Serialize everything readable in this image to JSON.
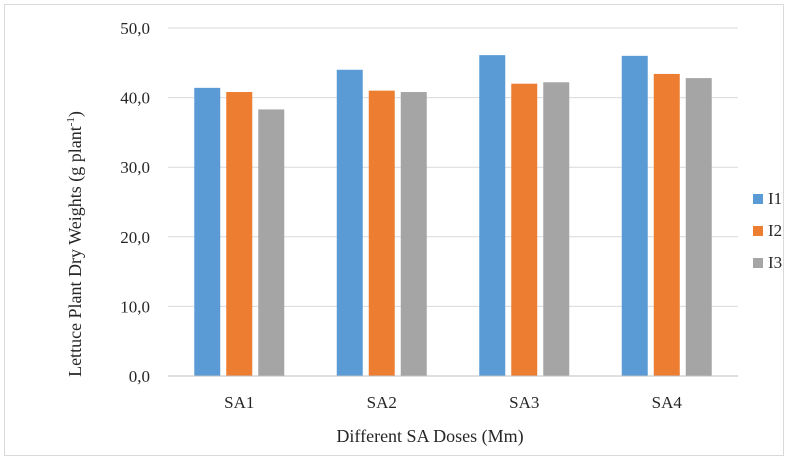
{
  "chart_data": {
    "type": "bar",
    "categories": [
      "SA1",
      "SA2",
      "SA3",
      "SA4"
    ],
    "series": [
      {
        "name": "I1",
        "values": [
          41.4,
          44.0,
          46.1,
          46.0
        ],
        "color": "#5b9bd5"
      },
      {
        "name": "I2",
        "values": [
          40.8,
          41.0,
          42.0,
          43.4
        ],
        "color": "#ed7d31"
      },
      {
        "name": "I3",
        "values": [
          38.3,
          40.8,
          42.2,
          42.8
        ],
        "color": "#a5a5a5"
      }
    ],
    "title": "",
    "xlabel": "Different SA Doses (Mm)",
    "ylabel_main": "Lettuce Plant Dry Weights (g  plant",
    "ylabel_sup": "-1",
    "ylabel_end": ")",
    "ylim": [
      0,
      50
    ],
    "yticks": [
      "0,0",
      "10,0",
      "20,0",
      "30,0",
      "40,0",
      "50,0"
    ],
    "ytick_values": [
      0,
      10,
      20,
      30,
      40,
      50
    ],
    "grid": true,
    "legend_position": "right",
    "gridline_color": "#d9d9d9"
  }
}
